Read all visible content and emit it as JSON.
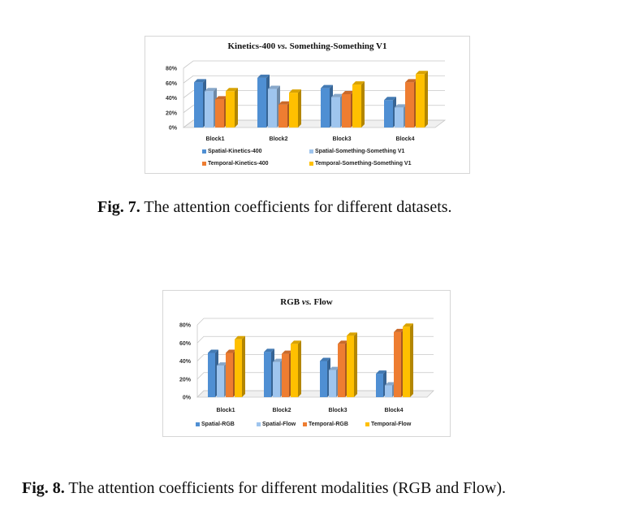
{
  "figures": [
    {
      "title_a": "Kinetics-400",
      "title_vs": "vs.",
      "title_b": "Something-Something V1",
      "caption_label": "Fig. 7.",
      "caption_text": "The attention coefficients for different datasets."
    },
    {
      "title_a": "RGB",
      "title_vs": "vs.",
      "title_b": "Flow",
      "caption_label": "Fig. 8.",
      "caption_text": "The attention coefficients for different modalities (RGB and Flow)."
    }
  ],
  "colors": {
    "spatial_primary": "#4f8fd3",
    "spatial_secondary": "#9fc5ee",
    "temporal_primary": "#ee7d31",
    "temporal_secondary": "#ffc000",
    "grid": "#c8c8c8"
  },
  "chart_data": [
    {
      "type": "bar",
      "title": "Kinetics-400 vs. Something-Something V1",
      "categories": [
        "Block1",
        "Block2",
        "Block3",
        "Block4"
      ],
      "y_ticks": [
        "0%",
        "20%",
        "40%",
        "60%",
        "80%"
      ],
      "ylim": [
        0,
        80
      ],
      "series": [
        {
          "name": "Spatial-Kinetics-400",
          "values": [
            61,
            67,
            53,
            37
          ]
        },
        {
          "name": "Spatial-Something-Something V1",
          "values": [
            49,
            52,
            41,
            27
          ]
        },
        {
          "name": "Temporal-Kinetics-400",
          "values": [
            38,
            31,
            45,
            61
          ]
        },
        {
          "name": "Temporal-Something-Something V1",
          "values": [
            49,
            47,
            58,
            72
          ]
        }
      ],
      "legend_placement": "bottom, two columns"
    },
    {
      "type": "bar",
      "title": "RGB vs. Flow",
      "categories": [
        "Block1",
        "Block2",
        "Block3",
        "Block4"
      ],
      "y_ticks": [
        "0%",
        "20%",
        "40%",
        "60%",
        "80%"
      ],
      "ylim": [
        0,
        80
      ],
      "series": [
        {
          "name": "Spatial-RGB",
          "values": [
            49,
            50,
            40,
            26
          ]
        },
        {
          "name": "Spatial-Flow",
          "values": [
            35,
            39,
            30,
            13
          ]
        },
        {
          "name": "Temporal-RGB",
          "values": [
            49,
            48,
            59,
            72
          ]
        },
        {
          "name": "Temporal-Flow",
          "values": [
            64,
            59,
            68,
            78
          ]
        }
      ],
      "legend_placement": "bottom, one row"
    }
  ]
}
